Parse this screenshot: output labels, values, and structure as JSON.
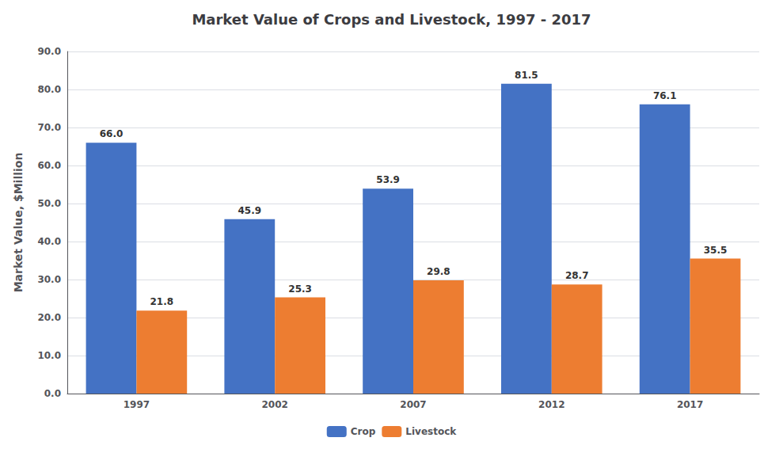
{
  "chart_data": {
    "type": "bar",
    "title": "Market Value of Crops and Livestock, 1997 - 2017",
    "ylabel": "Market Value, $Million",
    "categories": [
      "1997",
      "2002",
      "2007",
      "2012",
      "2017"
    ],
    "series": [
      {
        "name": "Crop",
        "color": "#4472C4",
        "values": [
          66.0,
          45.9,
          53.9,
          81.5,
          76.1
        ],
        "value_labels": [
          "66.0",
          "45.9",
          "53.9",
          "81.5",
          "76.1"
        ]
      },
      {
        "name": "Livestock",
        "color": "#ED7D31",
        "values": [
          21.8,
          25.3,
          29.8,
          28.7,
          35.5
        ],
        "value_labels": [
          "21.8",
          "25.3",
          "29.8",
          "28.7",
          "35.5"
        ]
      }
    ],
    "ylim": [
      0,
      90
    ],
    "yticks": [
      {
        "value": 0,
        "label": "0.0"
      },
      {
        "value": 10,
        "label": "10.0"
      },
      {
        "value": 20,
        "label": "20.0"
      },
      {
        "value": 30,
        "label": "30.0"
      },
      {
        "value": 40,
        "label": "40.0"
      },
      {
        "value": 50,
        "label": "50.0"
      },
      {
        "value": 60,
        "label": "60.0"
      },
      {
        "value": 70,
        "label": "70.0"
      },
      {
        "value": 80,
        "label": "80.0"
      },
      {
        "value": 90,
        "label": "90.0"
      }
    ],
    "grid": true,
    "legend": "bottom",
    "data_labels": true
  }
}
